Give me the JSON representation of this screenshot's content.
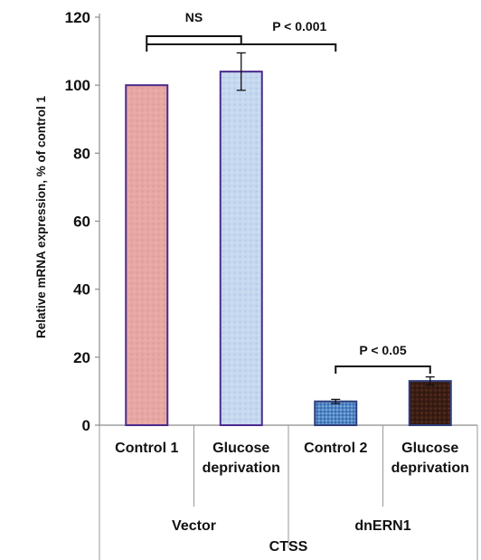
{
  "chart_data": {
    "type": "bar",
    "ylabel": "Relative mRNA expression, % of control 1",
    "ylim": [
      0,
      120
    ],
    "yticks": [
      "0",
      "20",
      "40",
      "60",
      "80",
      "100",
      "120"
    ],
    "grid": false,
    "bars": [
      {
        "label_lines": [
          "Control 1"
        ],
        "value": 100,
        "error": 0,
        "color": "#e7a7a4",
        "stroke": "#4b2a8a"
      },
      {
        "label_lines": [
          "Glucose",
          "deprivation"
        ],
        "value": 104,
        "error": 5.5,
        "color": "#c3d6ee",
        "stroke": "#4b2a8a"
      },
      {
        "label_lines": [
          "Control 2"
        ],
        "value": 7,
        "error": 0.6,
        "color": "#4f86c6",
        "stroke": "#2e3f7a"
      },
      {
        "label_lines": [
          "Glucose",
          "deprivation"
        ],
        "value": 13,
        "error": 1.2,
        "color": "#3a1d14",
        "stroke": "#2e3f7a"
      }
    ],
    "groups": [
      {
        "label": "Vector",
        "bars": [
          0,
          1
        ]
      },
      {
        "label": "dnERN1",
        "bars": [
          2,
          3
        ]
      }
    ],
    "gene_label": "CTSS",
    "annotations": [
      {
        "text": "NS",
        "from_bar": 0,
        "to_bar": 1
      },
      {
        "text": "P < 0.001",
        "from_bar": 0,
        "to_bar": 2
      },
      {
        "text": "P < 0.05",
        "from_bar": 2,
        "to_bar": 3
      }
    ]
  }
}
